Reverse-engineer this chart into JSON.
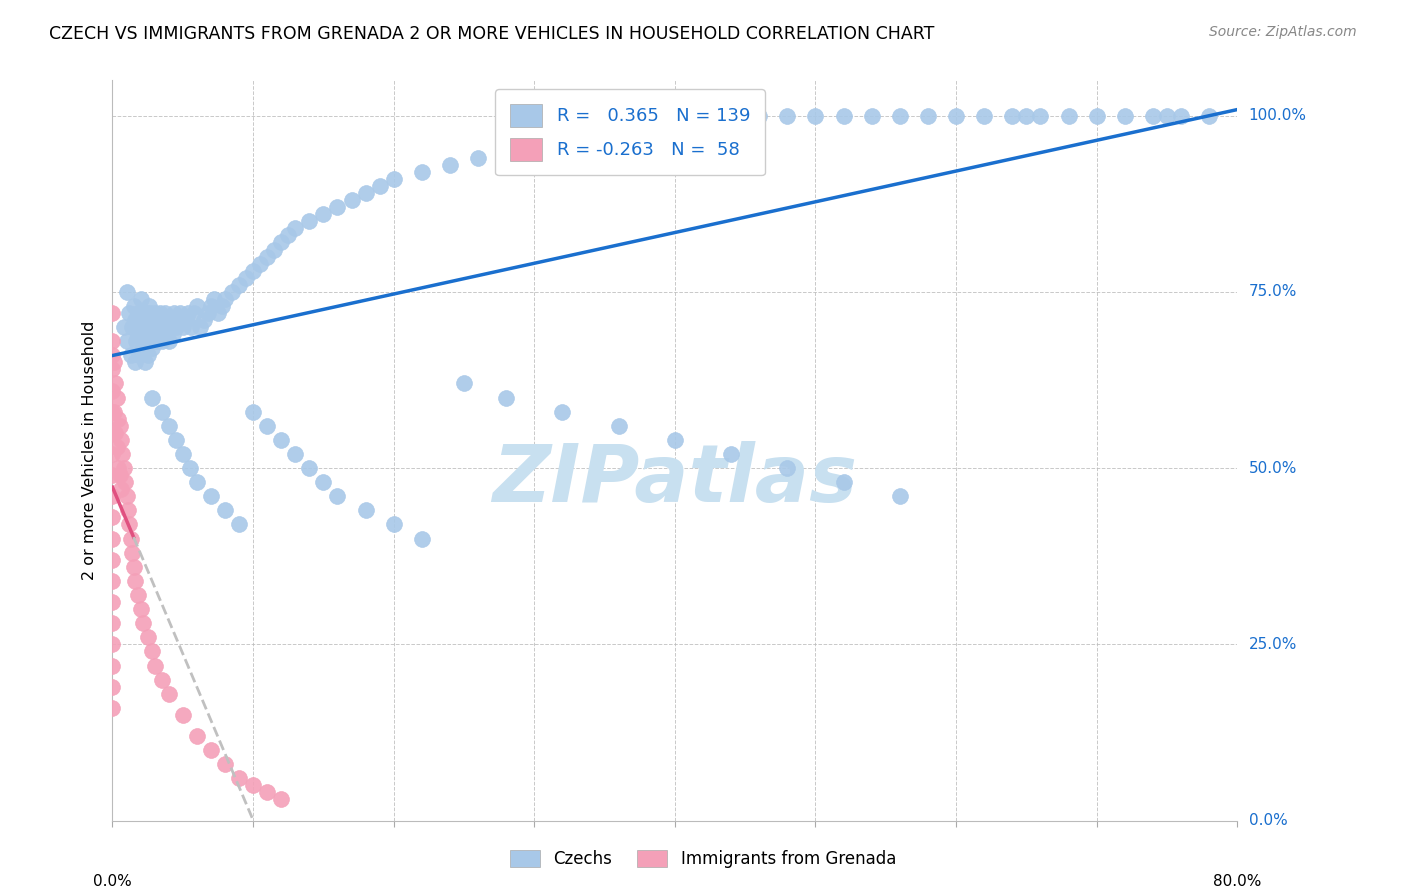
{
  "title": "CZECH VS IMMIGRANTS FROM GRENADA 2 OR MORE VEHICLES IN HOUSEHOLD CORRELATION CHART",
  "source": "Source: ZipAtlas.com",
  "ylabel": "2 or more Vehicles in Household",
  "xlim": [
    0.0,
    0.8
  ],
  "ylim": [
    0.0,
    1.05
  ],
  "r_czech": "0.365",
  "n_czech": "139",
  "r_grenada": "-0.263",
  "n_grenada": "58",
  "czech_color": "#a8c8e8",
  "grenada_color": "#f4a0b8",
  "trend_czech_color": "#1a6fce",
  "trend_grenada_solid_color": "#e05080",
  "trend_grenada_dashed_color": "#c0c0c0",
  "watermark_text": "ZIPatlas",
  "watermark_color": "#c8e0f0",
  "legend_label_czech": "Czechs",
  "legend_label_grenada": "Immigrants from Grenada",
  "legend_color_blue": "#1a6fce",
  "ytick_values": [
    0.0,
    0.25,
    0.5,
    0.75,
    1.0
  ],
  "ytick_labels": [
    "0.0%",
    "25.0%",
    "50.0%",
    "75.0%",
    "100.0%"
  ],
  "xtick_left_label": "0.0%",
  "xtick_right_label": "80.0%",
  "czech_x": [
    0.008,
    0.01,
    0.01,
    0.012,
    0.013,
    0.014,
    0.015,
    0.016,
    0.016,
    0.017,
    0.018,
    0.018,
    0.019,
    0.019,
    0.02,
    0.021,
    0.021,
    0.022,
    0.022,
    0.023,
    0.023,
    0.024,
    0.024,
    0.025,
    0.025,
    0.026,
    0.027,
    0.027,
    0.028,
    0.029,
    0.03,
    0.03,
    0.031,
    0.032,
    0.033,
    0.034,
    0.035,
    0.036,
    0.037,
    0.038,
    0.039,
    0.04,
    0.041,
    0.042,
    0.043,
    0.044,
    0.045,
    0.046,
    0.048,
    0.05,
    0.052,
    0.054,
    0.056,
    0.058,
    0.06,
    0.062,
    0.065,
    0.068,
    0.07,
    0.072,
    0.075,
    0.078,
    0.08,
    0.085,
    0.09,
    0.095,
    0.1,
    0.105,
    0.11,
    0.115,
    0.12,
    0.125,
    0.13,
    0.14,
    0.15,
    0.16,
    0.17,
    0.18,
    0.19,
    0.2,
    0.22,
    0.24,
    0.26,
    0.28,
    0.3,
    0.32,
    0.35,
    0.38,
    0.4,
    0.42,
    0.44,
    0.46,
    0.48,
    0.5,
    0.52,
    0.54,
    0.56,
    0.58,
    0.6,
    0.62,
    0.64,
    0.65,
    0.66,
    0.68,
    0.7,
    0.72,
    0.74,
    0.75,
    0.76,
    0.78,
    0.028,
    0.035,
    0.04,
    0.045,
    0.05,
    0.055,
    0.06,
    0.07,
    0.08,
    0.09,
    0.1,
    0.11,
    0.12,
    0.13,
    0.14,
    0.15,
    0.16,
    0.18,
    0.2,
    0.22,
    0.25,
    0.28,
    0.32,
    0.36,
    0.4,
    0.44,
    0.48,
    0.52,
    0.56
  ],
  "czech_y": [
    0.7,
    0.68,
    0.75,
    0.72,
    0.66,
    0.7,
    0.73,
    0.65,
    0.71,
    0.68,
    0.69,
    0.72,
    0.66,
    0.7,
    0.74,
    0.67,
    0.71,
    0.68,
    0.72,
    0.65,
    0.69,
    0.72,
    0.68,
    0.66,
    0.7,
    0.73,
    0.69,
    0.72,
    0.67,
    0.7,
    0.68,
    0.72,
    0.7,
    0.68,
    0.71,
    0.72,
    0.68,
    0.7,
    0.72,
    0.69,
    0.71,
    0.68,
    0.7,
    0.71,
    0.69,
    0.72,
    0.7,
    0.71,
    0.72,
    0.7,
    0.71,
    0.72,
    0.7,
    0.72,
    0.73,
    0.7,
    0.71,
    0.72,
    0.73,
    0.74,
    0.72,
    0.73,
    0.74,
    0.75,
    0.76,
    0.77,
    0.78,
    0.79,
    0.8,
    0.81,
    0.82,
    0.83,
    0.84,
    0.85,
    0.86,
    0.87,
    0.88,
    0.89,
    0.9,
    0.91,
    0.92,
    0.93,
    0.94,
    0.95,
    0.96,
    0.97,
    0.98,
    0.99,
    1.0,
    1.0,
    1.0,
    1.0,
    1.0,
    1.0,
    1.0,
    1.0,
    1.0,
    1.0,
    1.0,
    1.0,
    1.0,
    1.0,
    1.0,
    1.0,
    1.0,
    1.0,
    1.0,
    1.0,
    1.0,
    1.0,
    0.6,
    0.58,
    0.56,
    0.54,
    0.52,
    0.5,
    0.48,
    0.46,
    0.44,
    0.42,
    0.58,
    0.56,
    0.54,
    0.52,
    0.5,
    0.48,
    0.46,
    0.44,
    0.42,
    0.4,
    0.62,
    0.6,
    0.58,
    0.56,
    0.54,
    0.52,
    0.5,
    0.48,
    0.46
  ],
  "grenada_x": [
    0.0,
    0.0,
    0.0,
    0.0,
    0.0,
    0.0,
    0.0,
    0.0,
    0.0,
    0.0,
    0.0,
    0.0,
    0.0,
    0.0,
    0.0,
    0.0,
    0.0,
    0.0,
    0.0,
    0.0,
    0.001,
    0.001,
    0.002,
    0.002,
    0.003,
    0.003,
    0.004,
    0.004,
    0.005,
    0.005,
    0.006,
    0.006,
    0.007,
    0.008,
    0.009,
    0.01,
    0.011,
    0.012,
    0.013,
    0.014,
    0.015,
    0.016,
    0.018,
    0.02,
    0.022,
    0.025,
    0.028,
    0.03,
    0.035,
    0.04,
    0.05,
    0.06,
    0.07,
    0.08,
    0.09,
    0.1,
    0.11,
    0.12
  ],
  "grenada_y": [
    0.68,
    0.72,
    0.66,
    0.64,
    0.61,
    0.58,
    0.55,
    0.52,
    0.49,
    0.46,
    0.43,
    0.4,
    0.37,
    0.34,
    0.31,
    0.28,
    0.25,
    0.22,
    0.19,
    0.16,
    0.65,
    0.58,
    0.62,
    0.55,
    0.6,
    0.53,
    0.57,
    0.5,
    0.56,
    0.49,
    0.54,
    0.47,
    0.52,
    0.5,
    0.48,
    0.46,
    0.44,
    0.42,
    0.4,
    0.38,
    0.36,
    0.34,
    0.32,
    0.3,
    0.28,
    0.26,
    0.24,
    0.22,
    0.2,
    0.18,
    0.15,
    0.12,
    0.1,
    0.08,
    0.06,
    0.05,
    0.04,
    0.03
  ]
}
